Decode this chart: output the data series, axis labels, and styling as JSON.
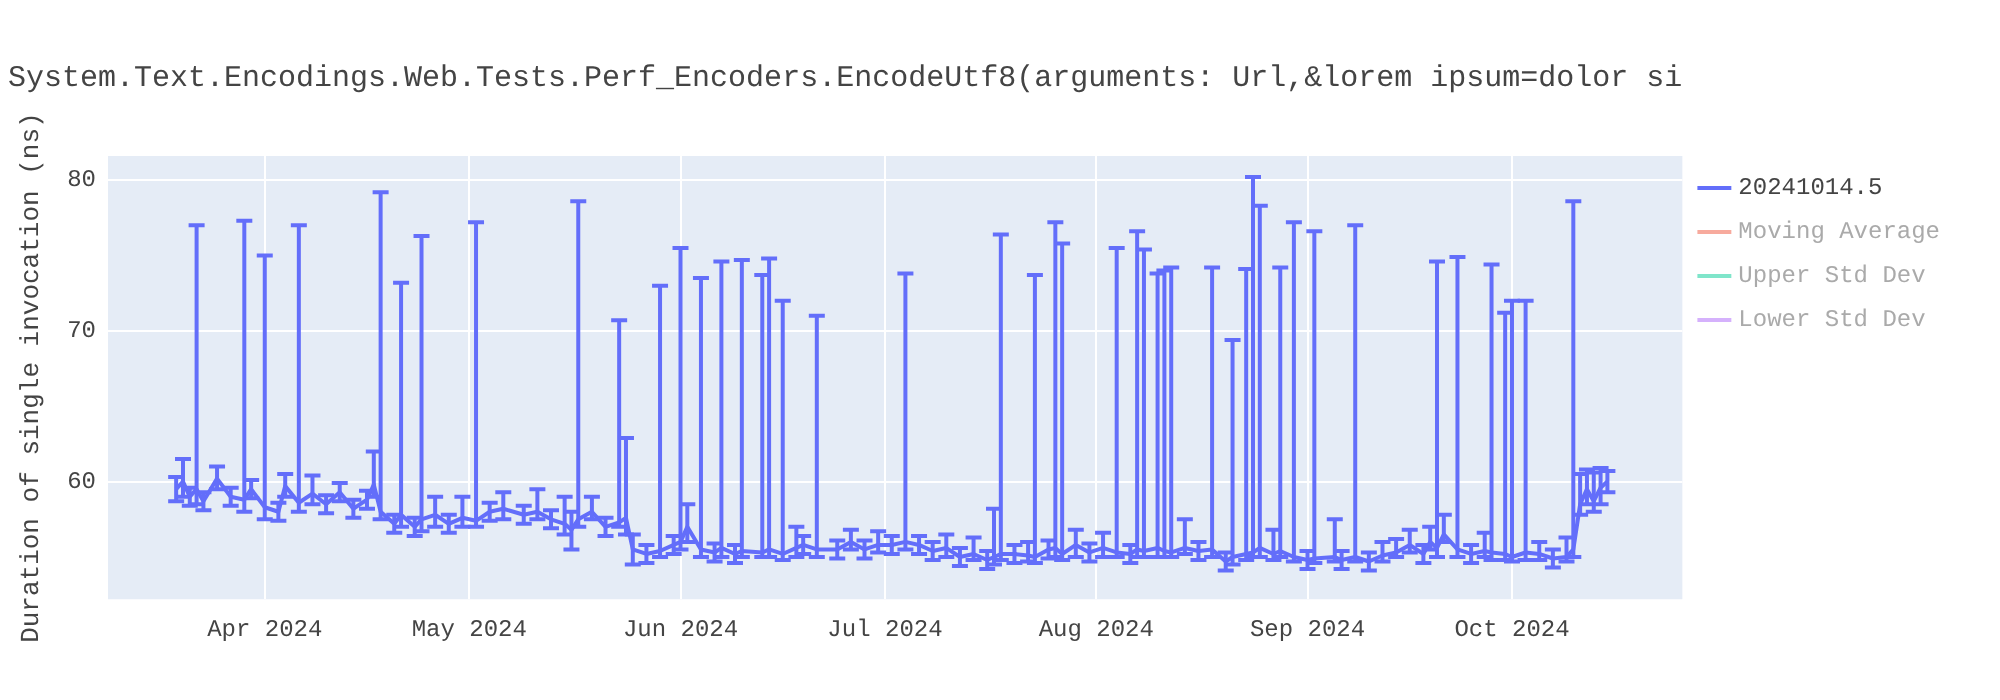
{
  "chart_data": {
    "type": "line",
    "title": "System.Text.Encodings.Web.Tests.Perf_Encoders.EncodeUtf8(arguments: Url,&lorem ipsum=dolor si",
    "ylabel": "Duration of single invocation (ns)",
    "xlim": [
      "2024-03-09",
      "2024-10-26"
    ],
    "ylim": [
      52.2,
      81.6
    ],
    "yticks": [
      60,
      70,
      80
    ],
    "xticks": [
      {
        "value": "2024-04-01",
        "label": "Apr 2024"
      },
      {
        "value": "2024-05-01",
        "label": "May 2024"
      },
      {
        "value": "2024-06-01",
        "label": "Jun 2024"
      },
      {
        "value": "2024-07-01",
        "label": "Jul 2024"
      },
      {
        "value": "2024-08-01",
        "label": "Aug 2024"
      },
      {
        "value": "2024-09-01",
        "label": "Sep 2024"
      },
      {
        "value": "2024-10-01",
        "label": "Oct 2024"
      }
    ],
    "grid": true,
    "legend": "top right",
    "marker": "none",
    "line_style": "solid",
    "x": [
      "2024-03-19",
      "2024-03-20",
      "2024-03-21",
      "2024-03-22",
      "2024-03-23",
      "2024-03-25",
      "2024-03-27",
      "2024-03-29",
      "2024-03-30",
      "2024-04-01",
      "2024-04-03",
      "2024-04-04",
      "2024-04-06",
      "2024-04-08",
      "2024-04-10",
      "2024-04-12",
      "2024-04-14",
      "2024-04-16",
      "2024-04-17",
      "2024-04-18",
      "2024-04-20",
      "2024-04-21",
      "2024-04-23",
      "2024-04-24",
      "2024-04-26",
      "2024-04-28",
      "2024-04-30",
      "2024-05-02",
      "2024-05-04",
      "2024-05-06",
      "2024-05-09",
      "2024-05-11",
      "2024-05-13",
      "2024-05-15",
      "2024-05-16",
      "2024-05-17",
      "2024-05-19",
      "2024-05-21",
      "2024-05-23",
      "2024-05-24",
      "2024-05-25",
      "2024-05-27",
      "2024-05-29",
      "2024-05-31",
      "2024-06-01",
      "2024-06-02",
      "2024-06-04",
      "2024-06-06",
      "2024-06-07",
      "2024-06-09",
      "2024-06-10",
      "2024-06-13",
      "2024-06-14",
      "2024-06-16",
      "2024-06-18",
      "2024-06-19",
      "2024-06-21",
      "2024-06-24",
      "2024-06-26",
      "2024-06-28",
      "2024-06-30",
      "2024-07-02",
      "2024-07-04",
      "2024-07-06",
      "2024-07-08",
      "2024-07-10",
      "2024-07-12",
      "2024-07-14",
      "2024-07-16",
      "2024-07-17",
      "2024-07-18",
      "2024-07-20",
      "2024-07-22",
      "2024-07-23",
      "2024-07-25",
      "2024-07-26",
      "2024-07-27",
      "2024-07-29",
      "2024-07-31",
      "2024-08-02",
      "2024-08-04",
      "2024-08-06",
      "2024-08-07",
      "2024-08-08",
      "2024-08-10",
      "2024-08-11",
      "2024-08-12",
      "2024-08-14",
      "2024-08-16",
      "2024-08-18",
      "2024-08-20",
      "2024-08-21",
      "2024-08-23",
      "2024-08-24",
      "2024-08-25",
      "2024-08-27",
      "2024-08-28",
      "2024-08-30",
      "2024-09-01",
      "2024-09-02",
      "2024-09-05",
      "2024-09-06",
      "2024-09-08",
      "2024-09-10",
      "2024-09-12",
      "2024-09-14",
      "2024-09-16",
      "2024-09-18",
      "2024-09-19",
      "2024-09-20",
      "2024-09-21",
      "2024-09-23",
      "2024-09-25",
      "2024-09-27",
      "2024-09-28",
      "2024-09-30",
      "2024-10-01",
      "2024-10-03",
      "2024-10-05",
      "2024-10-07",
      "2024-10-09",
      "2024-10-10",
      "2024-10-11",
      "2024-10-12",
      "2024-10-13",
      "2024-10-14",
      "2024-10-15"
    ],
    "series": [
      {
        "name": "20241014.5",
        "color": "#636efa",
        "values": [
          59.5,
          60,
          59,
          59.5,
          58.7,
          60.2,
          59,
          58.8,
          59.5,
          58.3,
          58,
          59.7,
          58.6,
          59.2,
          58.5,
          59.3,
          58.2,
          58.8,
          59.8,
          58,
          57.2,
          57.8,
          57,
          57.5,
          57.8,
          57.2,
          57.6,
          57.4,
          58,
          58.2,
          57.8,
          58,
          57.5,
          57.2,
          56.8,
          57.5,
          58,
          57,
          57.3,
          57.6,
          55.5,
          55.2,
          55.4,
          55.8,
          56,
          57,
          55.5,
          55.3,
          55.6,
          55.2,
          55.4,
          55.3,
          55.5,
          55.2,
          55.6,
          55.8,
          55.5,
          55.5,
          56,
          55.5,
          55.8,
          55.8,
          56,
          55.8,
          55.4,
          55.6,
          55,
          55.2,
          54.8,
          55,
          55.2,
          55.2,
          55.1,
          55,
          55.5,
          55.6,
          55.2,
          55.8,
          55.3,
          55.6,
          55.3,
          55.2,
          55.5,
          55.4,
          55.6,
          55.4,
          55.3,
          55.6,
          55.4,
          55.5,
          54.7,
          55,
          55.2,
          55.3,
          55.6,
          55.2,
          55.4,
          55,
          54.8,
          54.9,
          55,
          54.8,
          55,
          54.7,
          55.1,
          55.3,
          55.8,
          55.2,
          56,
          55.6,
          56.5,
          55.5,
          55.2,
          55.4,
          55.3,
          55.2,
          55,
          55.3,
          55.2,
          54.9,
          55,
          55.5,
          58.5,
          59.5,
          58.7,
          59.6,
          60
        ],
        "errors": [
          0.8,
          [
            59,
            61.5
          ],
          0.6,
          [
            58.5,
            77
          ],
          0.6,
          [
            59.5,
            61
          ],
          0.6,
          [
            58,
            77.3
          ],
          0.6,
          [
            57.5,
            75
          ],
          0.6,
          [
            59,
            60.5
          ],
          [
            58,
            77
          ],
          [
            58.5,
            60.4
          ],
          0.6,
          0.6,
          0.6,
          0.6,
          [
            59,
            62
          ],
          [
            57.5,
            79.2
          ],
          0.6,
          [
            57,
            73.2
          ],
          0.6,
          [
            56.7,
            76.3
          ],
          [
            57,
            59
          ],
          0.6,
          [
            57,
            59
          ],
          [
            57,
            77.2
          ],
          0.6,
          [
            57.5,
            59.3
          ],
          0.6,
          [
            57.5,
            59.5
          ],
          0.6,
          [
            56.5,
            59
          ],
          [
            55.5,
            58
          ],
          [
            57,
            78.6
          ],
          [
            57.5,
            59
          ],
          0.6,
          [
            57,
            70.7
          ],
          [
            56.5,
            62.9
          ],
          [
            54.5,
            56.5
          ],
          0.6,
          [
            55,
            73
          ],
          0.6,
          [
            55.5,
            75.5
          ],
          [
            56,
            58.5
          ],
          [
            55,
            73.5
          ],
          0.6,
          [
            55,
            74.6
          ],
          0.6,
          [
            55,
            74.7
          ],
          [
            55,
            73.7
          ],
          [
            55,
            74.8
          ],
          [
            54.8,
            72
          ],
          [
            55,
            57
          ],
          0.6,
          [
            55,
            71
          ],
          0.6,
          [
            55.5,
            56.8
          ],
          0.6,
          [
            55.3,
            56.7
          ],
          0.6,
          [
            55.5,
            73.8
          ],
          0.6,
          0.6,
          [
            55,
            56.5
          ],
          0.6,
          [
            54.8,
            56.3
          ],
          0.6,
          [
            54.5,
            58.2
          ],
          [
            54.8,
            76.4
          ],
          0.6,
          [
            54.7,
            56
          ],
          [
            54.6,
            73.7
          ],
          0.6,
          [
            55,
            77.2
          ],
          [
            54.8,
            75.8
          ],
          [
            55,
            56.8
          ],
          0.6,
          [
            55,
            56.6
          ],
          [
            55,
            75.5
          ],
          0.6,
          [
            55,
            76.6
          ],
          [
            55,
            75.4
          ],
          [
            55,
            73.8
          ],
          [
            55,
            74
          ],
          [
            55,
            74.2
          ],
          [
            55.2,
            57.5
          ],
          0.6,
          [
            55,
            74.2
          ],
          0.6,
          [
            54.5,
            69.4
          ],
          [
            54.8,
            74.1
          ],
          [
            55,
            80.2
          ],
          [
            55,
            78.3
          ],
          [
            54.8,
            56.8
          ],
          [
            55,
            74.2
          ],
          [
            54.7,
            77.2
          ],
          0.6,
          [
            54.6,
            76.6
          ],
          [
            54.7,
            57.5
          ],
          0.6,
          [
            54.7,
            77
          ],
          0.6,
          [
            54.7,
            56
          ],
          [
            55,
            56.2
          ],
          [
            55.3,
            56.8
          ],
          0.6,
          [
            55.5,
            57
          ],
          [
            55,
            74.6
          ],
          [
            56,
            57.8
          ],
          [
            55,
            74.9
          ],
          0.6,
          [
            55,
            56.6
          ],
          [
            54.8,
            74.4
          ],
          [
            54.8,
            71.2
          ],
          [
            54.7,
            72
          ],
          [
            54.8,
            72
          ],
          [
            54.8,
            56
          ],
          0.6,
          [
            54.7,
            56.3
          ],
          [
            55,
            78.6
          ],
          [
            57.8,
            60.5
          ],
          [
            58.5,
            60.8
          ],
          [
            58,
            60.6
          ],
          [
            58.5,
            60.9
          ],
          [
            59.3,
            60.7
          ]
        ]
      },
      {
        "name": "Moving Average",
        "color": "#ef553b",
        "values": [
          null,
          null,
          null,
          null,
          null,
          null,
          null,
          null,
          null,
          null,
          null,
          null,
          null,
          null,
          null,
          null,
          null,
          null,
          null,
          null,
          null,
          null,
          null,
          null,
          null,
          null,
          null,
          null,
          null,
          null,
          null,
          null,
          null,
          null,
          null,
          null,
          null,
          null,
          null,
          null,
          null,
          null,
          null,
          null,
          null,
          null,
          null,
          null,
          null,
          null,
          null,
          null,
          null,
          null,
          null,
          null,
          null,
          null,
          null,
          null,
          null,
          null,
          null,
          null,
          null,
          null,
          null,
          null,
          null,
          null,
          null,
          null,
          null,
          null,
          null,
          null,
          null,
          null,
          null,
          null,
          null,
          null,
          null,
          null,
          null,
          null,
          null,
          null,
          null,
          null,
          null,
          null,
          null,
          null,
          null,
          null,
          null,
          null,
          null,
          null,
          null,
          null,
          null,
          null,
          null,
          null,
          null,
          null,
          null,
          null,
          null,
          null,
          null,
          null,
          null,
          null,
          null,
          null,
          null,
          null,
          null,
          null,
          null,
          null,
          null,
          null,
          null
        ]
      },
      {
        "name": "Upper Std Dev",
        "color": "#00cc96",
        "values": [
          null,
          null,
          null,
          null,
          null,
          null,
          null,
          null,
          null,
          null,
          null,
          null,
          null,
          null,
          null,
          null,
          null,
          null,
          null,
          null,
          null,
          null,
          null,
          null,
          null,
          null,
          null,
          null,
          null,
          null,
          null,
          null,
          null,
          null,
          null,
          null,
          null,
          null,
          null,
          null,
          null,
          null,
          null,
          null,
          null,
          null,
          null,
          null,
          null,
          null,
          null,
          null,
          null,
          null,
          null,
          null,
          null,
          null,
          null,
          null,
          null,
          null,
          null,
          null,
          null,
          null,
          null,
          null,
          null,
          null,
          null,
          null,
          null,
          null,
          null,
          null,
          null,
          null,
          null,
          null,
          null,
          null,
          null,
          null,
          null,
          null,
          null,
          null,
          null,
          null,
          null,
          null,
          null,
          null,
          null,
          null,
          null,
          null,
          null,
          null,
          null,
          null,
          null,
          null,
          null,
          null,
          null,
          null,
          null,
          null,
          null,
          null,
          null,
          null,
          null,
          null,
          null,
          null,
          null,
          null,
          null,
          null,
          null,
          null,
          null,
          null,
          null
        ]
      },
      {
        "name": "Lower Std Dev",
        "color": "#ab63fa",
        "values": [
          null,
          null,
          null,
          null,
          null,
          null,
          null,
          null,
          null,
          null,
          null,
          null,
          null,
          null,
          null,
          null,
          null,
          null,
          null,
          null,
          null,
          null,
          null,
          null,
          null,
          null,
          null,
          null,
          null,
          null,
          null,
          null,
          null,
          null,
          null,
          null,
          null,
          null,
          null,
          null,
          null,
          null,
          null,
          null,
          null,
          null,
          null,
          null,
          null,
          null,
          null,
          null,
          null,
          null,
          null,
          null,
          null,
          null,
          null,
          null,
          null,
          null,
          null,
          null,
          null,
          null,
          null,
          null,
          null,
          null,
          null,
          null,
          null,
          null,
          null,
          null,
          null,
          null,
          null,
          null,
          null,
          null,
          null,
          null,
          null,
          null,
          null,
          null,
          null,
          null,
          null,
          null,
          null,
          null,
          null,
          null,
          null,
          null,
          null,
          null,
          null,
          null,
          null,
          null,
          null,
          null,
          null,
          null,
          null,
          null,
          null,
          null,
          null,
          null,
          null,
          null,
          null,
          null,
          null,
          null,
          null,
          null,
          null,
          null,
          null,
          null,
          null
        ]
      }
    ]
  }
}
